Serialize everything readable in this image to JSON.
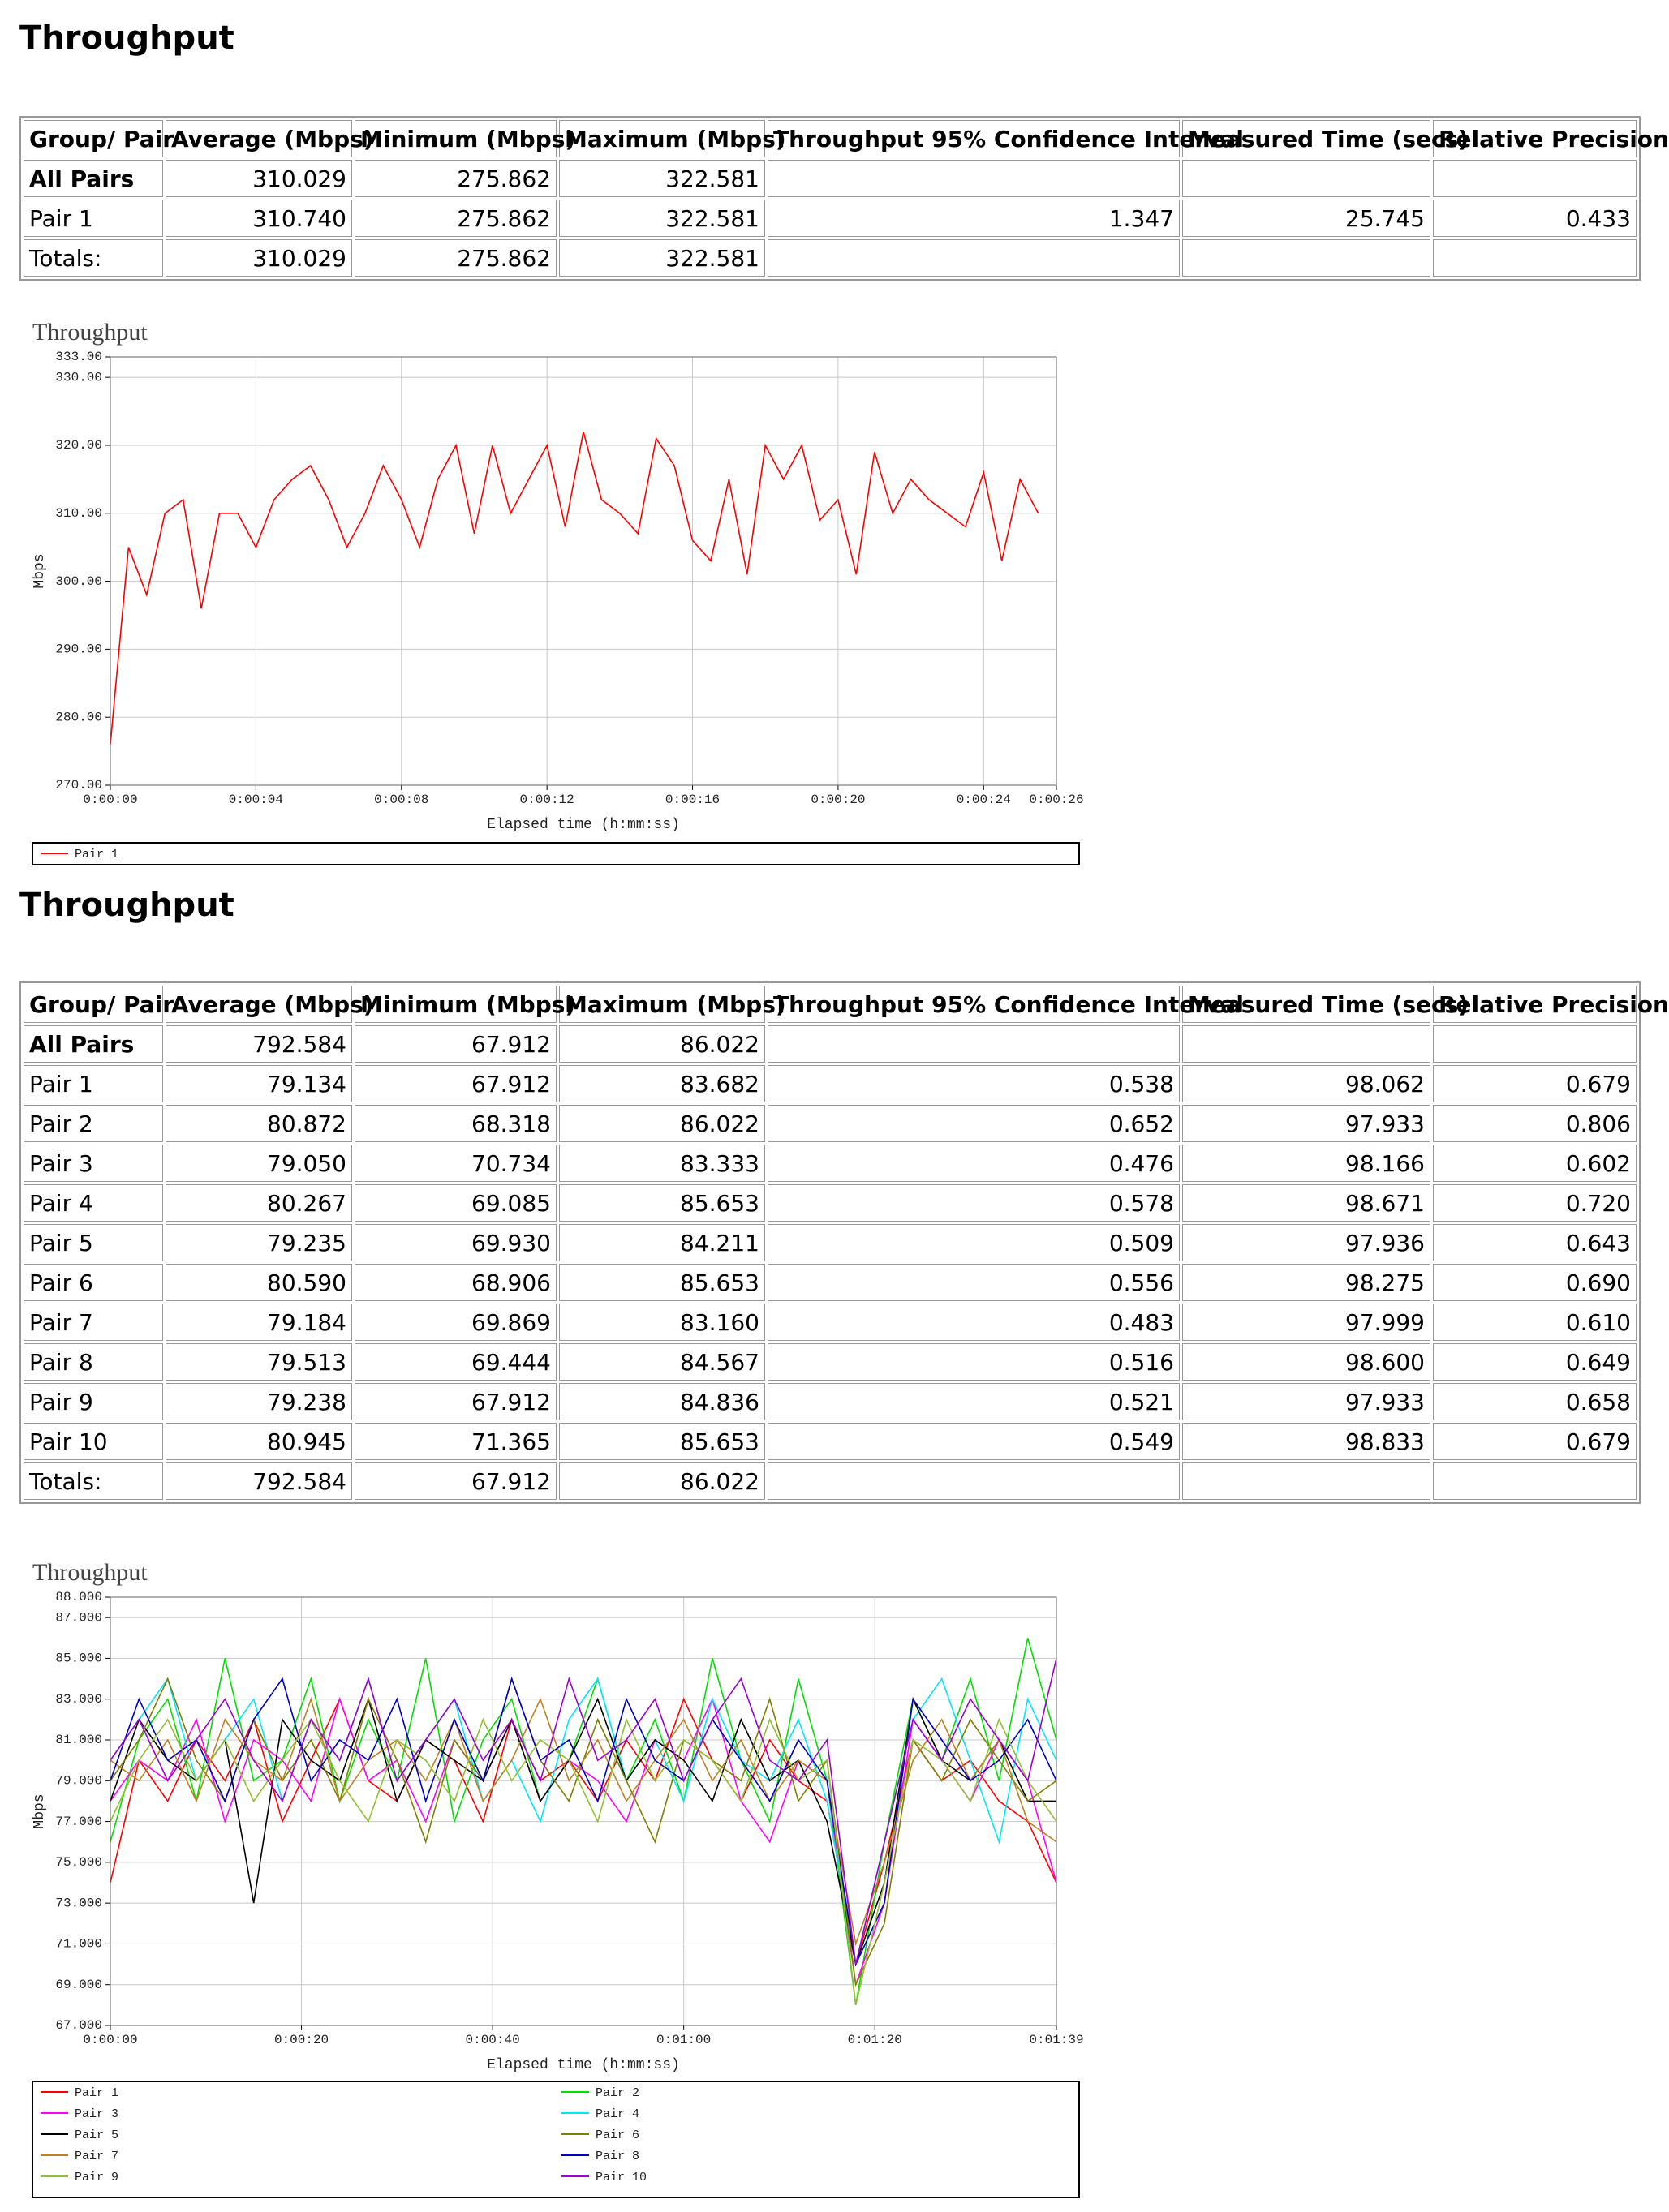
{
  "sections": [
    {
      "title": "Throughput",
      "table": {
        "header": [
          "Group/ Pair",
          "Average (Mbps)",
          "Minimum (Mbps)",
          "Maximum (Mbps)",
          "Throughput 95% Confidence Interval",
          "Measured Time (secs)",
          "Relative Precision"
        ],
        "rows": [
          [
            "All Pairs",
            "310.029",
            "275.862",
            "322.581",
            null,
            null,
            null
          ],
          [
            "Pair 1",
            "310.740",
            "275.862",
            "322.581",
            "1.347",
            "25.745",
            "0.433"
          ],
          [
            "Totals:",
            "310.029",
            "275.862",
            "322.581",
            null,
            null,
            null
          ]
        ]
      },
      "chart_data": {
        "type": "line",
        "title": "Throughput",
        "y_label": "Mbps",
        "x_label": "Elapsed time (h:mm:ss)",
        "grid": true,
        "xlim": [
          0,
          26
        ],
        "ylim": [
          270,
          333
        ],
        "xticks": [
          {
            "value": 0,
            "label": "0:00:00"
          },
          {
            "value": 4,
            "label": "0:00:04"
          },
          {
            "value": 8,
            "label": "0:00:08"
          },
          {
            "value": 12,
            "label": "0:00:12"
          },
          {
            "value": 16,
            "label": "0:00:16"
          },
          {
            "value": 20,
            "label": "0:00:20"
          },
          {
            "value": 24,
            "label": "0:00:24"
          },
          {
            "value": 26,
            "label": "0:00:26"
          }
        ],
        "yticks": [
          {
            "value": 270,
            "label": "270.00"
          },
          {
            "value": 280,
            "label": "280.00"
          },
          {
            "value": 290,
            "label": "290.00"
          },
          {
            "value": 300,
            "label": "300.00"
          },
          {
            "value": 310,
            "label": "310.00"
          },
          {
            "value": 320,
            "label": "320.00"
          },
          {
            "value": 330,
            "label": "330.00"
          },
          {
            "value": 333,
            "label": "333.00"
          }
        ],
        "x": [
          0,
          0.5,
          1,
          1.5,
          2,
          2.5,
          3,
          3.5,
          4,
          4.5,
          5,
          5.5,
          6,
          6.5,
          7,
          7.5,
          8,
          8.5,
          9,
          9.5,
          10,
          10.5,
          11,
          11.5,
          12,
          12.5,
          13,
          13.5,
          14,
          14.5,
          15,
          15.5,
          16,
          16.5,
          17,
          17.5,
          18,
          18.5,
          19,
          19.5,
          20,
          20.5,
          21,
          21.5,
          22,
          22.5,
          23,
          23.5,
          24,
          24.5,
          25,
          25.5
        ],
        "series": [
          {
            "name": "Pair 1",
            "color": "#ff0000",
            "values": [
              276,
              305,
              298,
              310,
              312,
              296,
              310,
              310,
              305,
              312,
              315,
              317,
              312,
              305,
              310,
              317,
              312,
              305,
              315,
              320,
              307,
              320,
              310,
              315,
              320,
              308,
              322,
              312,
              310,
              307,
              321,
              317,
              306,
              303,
              315,
              301,
              320,
              315,
              320,
              309,
              312,
              301,
              319,
              310,
              315,
              312,
              310,
              308,
              316,
              303,
              315,
              310
            ]
          }
        ]
      }
    },
    {
      "title": "Throughput",
      "table": {
        "header": [
          "Group/ Pair",
          "Average (Mbps)",
          "Minimum (Mbps)",
          "Maximum (Mbps)",
          "Throughput 95% Confidence Interval",
          "Measured Time (secs)",
          "Relative Precision"
        ],
        "rows": [
          [
            "All Pairs",
            "792.584",
            "67.912",
            "86.022",
            null,
            null,
            null
          ],
          [
            "Pair 1",
            "79.134",
            "67.912",
            "83.682",
            "0.538",
            "98.062",
            "0.679"
          ],
          [
            "Pair 2",
            "80.872",
            "68.318",
            "86.022",
            "0.652",
            "97.933",
            "0.806"
          ],
          [
            "Pair 3",
            "79.050",
            "70.734",
            "83.333",
            "0.476",
            "98.166",
            "0.602"
          ],
          [
            "Pair 4",
            "80.267",
            "69.085",
            "85.653",
            "0.578",
            "98.671",
            "0.720"
          ],
          [
            "Pair 5",
            "79.235",
            "69.930",
            "84.211",
            "0.509",
            "97.936",
            "0.643"
          ],
          [
            "Pair 6",
            "80.590",
            "68.906",
            "85.653",
            "0.556",
            "98.275",
            "0.690"
          ],
          [
            "Pair 7",
            "79.184",
            "69.869",
            "83.160",
            "0.483",
            "97.999",
            "0.610"
          ],
          [
            "Pair 8",
            "79.513",
            "69.444",
            "84.567",
            "0.516",
            "98.600",
            "0.649"
          ],
          [
            "Pair 9",
            "79.238",
            "67.912",
            "84.836",
            "0.521",
            "97.933",
            "0.658"
          ],
          [
            "Pair 10",
            "80.945",
            "71.365",
            "85.653",
            "0.549",
            "98.833",
            "0.679"
          ],
          [
            "Totals:",
            "792.584",
            "67.912",
            "86.022",
            null,
            null,
            null
          ]
        ]
      },
      "chart_data": {
        "type": "line",
        "title": "Throughput",
        "y_label": "Mbps",
        "x_label": "Elapsed time (h:mm:ss)",
        "grid": true,
        "xlim": [
          0,
          99
        ],
        "ylim": [
          67,
          88
        ],
        "xticks": [
          {
            "value": 0,
            "label": "0:00:00"
          },
          {
            "value": 20,
            "label": "0:00:20"
          },
          {
            "value": 40,
            "label": "0:00:40"
          },
          {
            "value": 60,
            "label": "0:01:00"
          },
          {
            "value": 80,
            "label": "0:01:20"
          },
          {
            "value": 99,
            "label": "0:01:39"
          }
        ],
        "yticks": [
          {
            "value": 67,
            "label": "67.000"
          },
          {
            "value": 69,
            "label": "69.000"
          },
          {
            "value": 71,
            "label": "71.000"
          },
          {
            "value": 73,
            "label": "73.000"
          },
          {
            "value": 75,
            "label": "75.000"
          },
          {
            "value": 77,
            "label": "77.000"
          },
          {
            "value": 79,
            "label": "79.000"
          },
          {
            "value": 81,
            "label": "81.000"
          },
          {
            "value": 83,
            "label": "83.000"
          },
          {
            "value": 85,
            "label": "85.000"
          },
          {
            "value": 87,
            "label": "87.000"
          },
          {
            "value": 88,
            "label": "88.000"
          }
        ],
        "x": [
          0,
          3,
          6,
          9,
          12,
          15,
          18,
          21,
          24,
          27,
          30,
          33,
          36,
          39,
          42,
          45,
          48,
          51,
          54,
          57,
          60,
          63,
          66,
          69,
          72,
          75,
          78,
          81,
          84,
          87,
          90,
          93,
          96,
          99
        ],
        "series": [
          {
            "name": "Pair 1",
            "color": "#ff0000",
            "values": [
              74,
              80,
              78,
              81,
              79,
              82,
              77,
              80,
              83,
              79,
              78,
              81,
              80,
              77,
              82,
              79,
              80,
              78,
              81,
              79,
              83,
              80,
              78,
              81,
              79,
              78,
              70,
              75,
              81,
              79,
              80,
              78,
              77,
              74
            ]
          },
          {
            "name": "Pair 2",
            "color": "#00e000",
            "values": [
              76,
              81,
              83,
              78,
              85,
              79,
              80,
              84,
              78,
              82,
              79,
              85,
              77,
              81,
              83,
              78,
              80,
              84,
              79,
              82,
              78,
              85,
              80,
              77,
              84,
              79,
              68,
              76,
              83,
              80,
              84,
              79,
              86,
              81
            ]
          },
          {
            "name": "Pair 3",
            "color": "#ff00ff",
            "values": [
              78,
              80,
              79,
              82,
              77,
              81,
              80,
              78,
              83,
              79,
              80,
              77,
              81,
              79,
              82,
              78,
              80,
              79,
              77,
              81,
              80,
              83,
              78,
              76,
              80,
              79,
              69,
              73,
              82,
              80,
              78,
              81,
              79,
              74
            ]
          },
          {
            "name": "Pair 4",
            "color": "#00e8ff",
            "values": [
              80,
              82,
              84,
              79,
              81,
              83,
              78,
              82,
              80,
              84,
              79,
              81,
              83,
              78,
              80,
              77,
              82,
              84,
              79,
              81,
              78,
              83,
              80,
              79,
              82,
              78,
              70,
              76,
              82,
              84,
              80,
              76,
              83,
              80
            ]
          },
          {
            "name": "Pair 5",
            "color": "#000000",
            "values": [
              78,
              82,
              80,
              79,
              81,
              73,
              82,
              80,
              79,
              83,
              78,
              81,
              80,
              79,
              82,
              78,
              80,
              83,
              79,
              81,
              80,
              78,
              82,
              79,
              80,
              77,
              70,
              74,
              83,
              80,
              79,
              81,
              78,
              78
            ]
          },
          {
            "name": "Pair 6",
            "color": "#808000",
            "values": [
              79,
              81,
              84,
              80,
              78,
              82,
              79,
              81,
              78,
              83,
              80,
              76,
              81,
              79,
              84,
              80,
              78,
              82,
              79,
              76,
              81,
              80,
              79,
              83,
              78,
              80,
              69,
              72,
              81,
              79,
              82,
              80,
              78,
              79
            ]
          },
          {
            "name": "Pair 7",
            "color": "#c08020",
            "values": [
              80,
              79,
              81,
              78,
              82,
              80,
              79,
              83,
              78,
              80,
              81,
              79,
              82,
              78,
              80,
              83,
              79,
              81,
              78,
              80,
              82,
              79,
              81,
              78,
              80,
              79,
              71,
              75,
              80,
              82,
              79,
              81,
              77,
              76
            ]
          },
          {
            "name": "Pair 8",
            "color": "#0000c0",
            "values": [
              79,
              83,
              80,
              81,
              78,
              82,
              84,
              79,
              81,
              80,
              83,
              78,
              82,
              79,
              84,
              80,
              81,
              78,
              83,
              80,
              79,
              82,
              80,
              78,
              81,
              79,
              70,
              73,
              83,
              81,
              79,
              80,
              82,
              79
            ]
          },
          {
            "name": "Pair 9",
            "color": "#90c030",
            "values": [
              77,
              80,
              82,
              79,
              81,
              78,
              80,
              82,
              79,
              77,
              81,
              80,
              78,
              82,
              79,
              81,
              80,
              77,
              82,
              79,
              81,
              80,
              78,
              82,
              79,
              80,
              68,
              74,
              81,
              80,
              78,
              82,
              79,
              77
            ]
          },
          {
            "name": "Pair 10",
            "color": "#a000d0",
            "values": [
              80,
              82,
              79,
              81,
              83,
              80,
              78,
              82,
              80,
              84,
              79,
              81,
              83,
              80,
              82,
              79,
              84,
              80,
              81,
              83,
              79,
              82,
              84,
              80,
              79,
              81,
              70,
              76,
              82,
              80,
              83,
              81,
              79,
              85
            ]
          }
        ]
      }
    }
  ]
}
